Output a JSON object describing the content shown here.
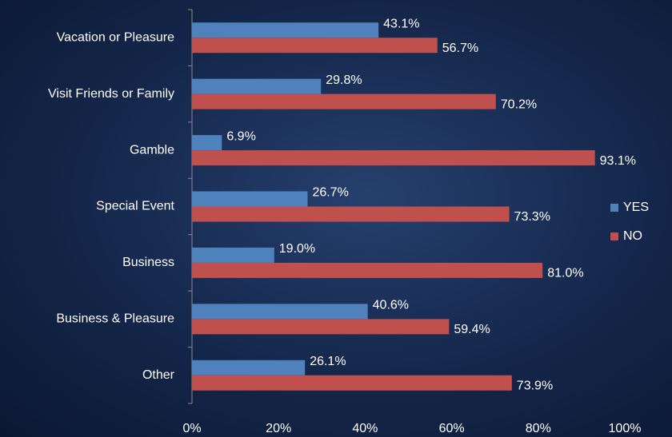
{
  "chart_data": {
    "type": "bar",
    "orientation": "horizontal",
    "categories": [
      "Vacation or Pleasure",
      "Visit Friends or Family",
      "Gamble",
      "Special Event",
      "Business",
      "Business & Pleasure",
      "Other"
    ],
    "series": [
      {
        "name": "YES",
        "color": "#4f81bd",
        "values": [
          43.1,
          29.8,
          6.9,
          26.7,
          19.0,
          40.6,
          26.1
        ],
        "value_labels": [
          "43.1%",
          "29.8%",
          "6.9%",
          "26.7%",
          "19.0%",
          "40.6%",
          "26.1%"
        ]
      },
      {
        "name": "NO",
        "color": "#c0504d",
        "values": [
          56.7,
          70.2,
          93.1,
          73.3,
          81.0,
          59.4,
          73.9
        ],
        "value_labels": [
          "56.7%",
          "70.2%",
          "93.1%",
          "73.3%",
          "81.0%",
          "59.4%",
          "73.9%"
        ]
      }
    ],
    "xlim": [
      0,
      100
    ],
    "xticks": [
      {
        "value": 0,
        "label": "0%"
      },
      {
        "value": 20,
        "label": "20%"
      },
      {
        "value": 40,
        "label": "40%"
      },
      {
        "value": 60,
        "label": "60%"
      },
      {
        "value": 80,
        "label": "80%"
      },
      {
        "value": 100,
        "label": "100%"
      }
    ],
    "grid": false,
    "legend": "right"
  }
}
